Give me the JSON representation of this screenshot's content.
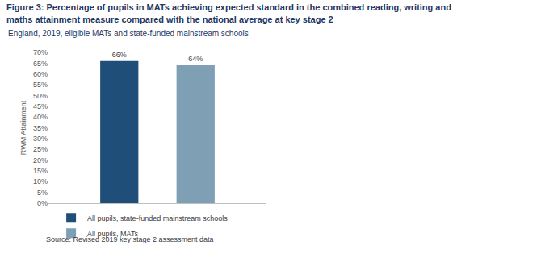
{
  "chart_data": {
    "type": "bar",
    "title": "Figure 3: Percentage of pupils in MATs achieving expected standard in the combined reading, writing and\nmaths attainment measure compared with the national average at key stage 2",
    "subtitle": "England, 2019, eligible MATs and state-funded mainstream schools",
    "y_label": "RWM Attainment",
    "annotations": [
      "Source: Revised 2019 key stage 2 assessment data"
    ],
    "categories": [
      null
    ],
    "series": [
      {
        "name": "All pupils, state-funded mainstream schools",
        "color": "#1f4e79",
        "values": [
          66
        ],
        "value_labels": [
          "66%"
        ]
      },
      {
        "name": "All pupils, MATs",
        "color": "#7f9fb5",
        "values": [
          64
        ],
        "value_labels": [
          "64%"
        ]
      }
    ],
    "ylim": [
      0,
      70
    ],
    "yticks": [
      {
        "value": 0,
        "label": "0%"
      },
      {
        "value": 5,
        "label": "5%"
      },
      {
        "value": 10,
        "label": "10%"
      },
      {
        "value": 15,
        "label": "15%"
      },
      {
        "value": 20,
        "label": "20%"
      },
      {
        "value": 25,
        "label": "25%"
      },
      {
        "value": 30,
        "label": "30%"
      },
      {
        "value": 35,
        "label": "35%"
      },
      {
        "value": 40,
        "label": "40%"
      },
      {
        "value": 45,
        "label": "45%"
      },
      {
        "value": 50,
        "label": "50%"
      },
      {
        "value": 55,
        "label": "55%"
      },
      {
        "value": 60,
        "label": "60%"
      },
      {
        "value": 65,
        "label": "65%"
      },
      {
        "value": 70,
        "label": "70%"
      }
    ],
    "grid": false,
    "data_labels": true,
    "tick_labels": "y",
    "legend": "bottom left"
  }
}
